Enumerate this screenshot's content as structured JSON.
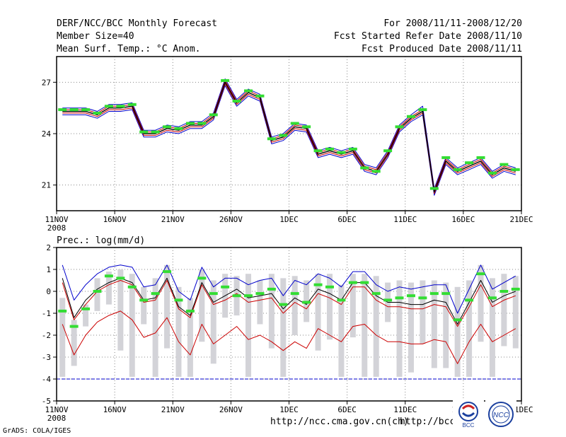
{
  "header": {
    "title": "DERF/NCC/BCC Monthly Forecast",
    "member_size": "Member Size=40",
    "variable": "Mean Surf. Temp.: °C Anom.",
    "forecast_period": "For 2008/11/11-2008/12/20",
    "started_refer": "Fcst Started Refer Date 2008/11/10",
    "produced": "Fcst Produced Date 2008/11/11"
  },
  "footer": {
    "url_ncc": "http://ncc.cma.gov.cn(ch)",
    "url_bcc": "http://bcc.c",
    "credit": "GrADS: COLA/IGES",
    "logo_bcc_label": "BCC",
    "logo_ncc_label": "NCC"
  },
  "colors": {
    "mean": "#000000",
    "inner_envelope": "#cc0000",
    "outer_envelope": "#0000cc",
    "marker": "#33dd33",
    "spread_bar": "#d3d3d8",
    "grid": "#888888"
  },
  "chart_data": [
    {
      "type": "line",
      "title": "Mean Surf. Temp.: °C Anom.",
      "x_tick_labels": [
        "11NOV",
        "16NOV",
        "21NOV",
        "26NOV",
        "1DEC",
        "6DEC",
        "11DEC",
        "16DEC",
        "21DEC"
      ],
      "x_sub_label": "2008",
      "y_ticks": [
        21,
        24,
        27
      ],
      "ylim": [
        19.5,
        28.5
      ],
      "x": [
        1,
        2,
        3,
        4,
        5,
        6,
        7,
        8,
        9,
        10,
        11,
        12,
        13,
        14,
        15,
        16,
        17,
        18,
        19,
        20,
        21,
        22,
        23,
        24,
        25,
        26,
        27,
        28,
        29,
        30,
        31,
        32,
        33,
        34,
        35,
        36,
        37,
        38,
        39,
        40
      ],
      "series": [
        {
          "name": "mean",
          "values": [
            25.3,
            25.3,
            25.3,
            25.1,
            25.5,
            25.5,
            25.6,
            24.0,
            24.0,
            24.3,
            24.2,
            24.5,
            24.5,
            25.0,
            27.0,
            25.8,
            26.4,
            26.1,
            23.6,
            23.8,
            24.4,
            24.3,
            22.8,
            23.0,
            22.8,
            23.0,
            22.0,
            21.8,
            22.8,
            24.3,
            24.9,
            25.3,
            20.6,
            22.4,
            21.8,
            22.1,
            22.4,
            21.6,
            22.0,
            21.8
          ]
        },
        {
          "name": "red-envelope-upper",
          "values": [
            25.4,
            25.4,
            25.4,
            25.2,
            25.6,
            25.6,
            25.7,
            24.1,
            24.1,
            24.4,
            24.3,
            24.6,
            24.6,
            25.1,
            27.1,
            25.9,
            26.5,
            26.2,
            23.7,
            23.9,
            24.5,
            24.4,
            22.9,
            23.1,
            22.9,
            23.1,
            22.1,
            21.9,
            22.9,
            24.4,
            25.0,
            25.4,
            20.7,
            22.5,
            21.9,
            22.2,
            22.5,
            21.7,
            22.1,
            21.9
          ]
        },
        {
          "name": "red-envelope-lower",
          "values": [
            25.2,
            25.2,
            25.2,
            25.0,
            25.4,
            25.4,
            25.5,
            23.9,
            23.9,
            24.2,
            24.1,
            24.4,
            24.4,
            24.9,
            26.9,
            25.7,
            26.3,
            26.0,
            23.5,
            23.7,
            24.3,
            24.2,
            22.7,
            22.9,
            22.7,
            22.9,
            21.9,
            21.7,
            22.7,
            24.2,
            24.8,
            25.2,
            20.5,
            22.3,
            21.7,
            22.0,
            22.3,
            21.5,
            21.9,
            21.7
          ]
        },
        {
          "name": "blue-envelope-upper",
          "values": [
            25.5,
            25.5,
            25.5,
            25.3,
            25.7,
            25.7,
            25.8,
            24.2,
            24.2,
            24.5,
            24.4,
            24.7,
            24.7,
            25.2,
            27.2,
            26.0,
            26.6,
            26.3,
            23.8,
            24.0,
            24.6,
            24.5,
            23.0,
            23.2,
            23.0,
            23.2,
            22.2,
            22.0,
            23.0,
            24.5,
            25.1,
            25.6,
            20.8,
            22.6,
            22.0,
            22.3,
            22.6,
            21.8,
            22.2,
            22.0
          ]
        },
        {
          "name": "blue-envelope-lower",
          "values": [
            25.1,
            25.1,
            25.1,
            24.9,
            25.3,
            25.3,
            25.4,
            23.8,
            23.8,
            24.1,
            24.0,
            24.3,
            24.3,
            24.8,
            26.8,
            25.6,
            26.2,
            25.9,
            23.4,
            23.6,
            24.2,
            24.1,
            22.6,
            22.8,
            22.6,
            22.8,
            21.8,
            21.6,
            22.6,
            24.1,
            24.7,
            25.1,
            20.4,
            22.2,
            21.6,
            21.9,
            22.2,
            21.4,
            21.8,
            21.6
          ]
        },
        {
          "name": "green-markers",
          "values": [
            25.4,
            25.4,
            25.4,
            25.2,
            25.6,
            25.6,
            25.7,
            24.1,
            24.1,
            24.4,
            24.3,
            24.6,
            24.6,
            25.1,
            27.1,
            25.9,
            26.5,
            26.2,
            23.7,
            23.9,
            24.6,
            24.4,
            23.0,
            23.1,
            22.9,
            23.1,
            22.0,
            21.8,
            23.0,
            24.4,
            25.0,
            25.4,
            20.8,
            22.6,
            21.9,
            22.3,
            22.6,
            21.7,
            22.2,
            21.9
          ]
        }
      ]
    },
    {
      "type": "line",
      "title": "Prec.: log(mm/d)",
      "x_tick_labels": [
        "11NOV",
        "16NOV",
        "21NOV",
        "26NOV",
        "1DEC",
        "6DEC",
        "11DEC",
        "16DEC",
        "21DEC"
      ],
      "x_sub_label": "2008",
      "y_ticks": [
        -5,
        -4,
        -3,
        -2,
        -1,
        0,
        1,
        2
      ],
      "ylim": [
        -5,
        2
      ],
      "x": [
        1,
        2,
        3,
        4,
        5,
        6,
        7,
        8,
        9,
        10,
        11,
        12,
        13,
        14,
        15,
        16,
        17,
        18,
        19,
        20,
        21,
        22,
        23,
        24,
        25,
        26,
        27,
        28,
        29,
        30,
        31,
        32,
        33,
        34,
        35,
        36,
        37,
        38,
        39,
        40
      ],
      "baseline": -4,
      "series": [
        {
          "name": "mean",
          "values": [
            0.6,
            -1.2,
            -0.4,
            0.1,
            0.4,
            0.6,
            0.4,
            -0.4,
            -0.3,
            0.6,
            -0.7,
            -1.1,
            0.4,
            -0.5,
            -0.2,
            0.1,
            -0.3,
            -0.2,
            -0.1,
            -0.8,
            -0.3,
            -0.6,
            0.1,
            -0.1,
            -0.4,
            0.4,
            0.4,
            -0.2,
            -0.5,
            -0.5,
            -0.6,
            -0.6,
            -0.4,
            -0.5,
            -1.5,
            -0.5,
            0.5,
            -0.5,
            -0.2,
            0.0
          ]
        },
        {
          "name": "inner-upper",
          "values": [
            0.4,
            -1.3,
            -0.6,
            0.0,
            0.3,
            0.5,
            0.3,
            -0.5,
            -0.4,
            0.5,
            -0.8,
            -1.2,
            0.3,
            -0.6,
            -0.4,
            -0.1,
            -0.5,
            -0.4,
            -0.3,
            -1.0,
            -0.5,
            -0.8,
            -0.1,
            -0.3,
            -0.6,
            0.2,
            0.2,
            -0.4,
            -0.7,
            -0.7,
            -0.8,
            -0.8,
            -0.6,
            -0.7,
            -1.6,
            -0.7,
            0.3,
            -0.7,
            -0.4,
            -0.2
          ]
        },
        {
          "name": "inner-lower",
          "values": [
            -1.5,
            -2.9,
            -2.0,
            -1.4,
            -1.1,
            -0.9,
            -1.3,
            -2.1,
            -1.9,
            -1.2,
            -2.3,
            -2.9,
            -1.5,
            -2.4,
            -2.0,
            -1.6,
            -2.2,
            -2.0,
            -2.3,
            -2.7,
            -2.3,
            -2.6,
            -1.7,
            -2.0,
            -2.3,
            -1.6,
            -1.5,
            -2.0,
            -2.3,
            -2.3,
            -2.4,
            -2.4,
            -2.2,
            -2.3,
            -3.3,
            -2.3,
            -1.5,
            -2.3,
            -2.0,
            -1.7
          ]
        },
        {
          "name": "outer-upper",
          "values": [
            1.2,
            -0.4,
            0.3,
            0.8,
            1.1,
            1.2,
            1.1,
            0.2,
            0.3,
            1.2,
            0.0,
            -0.4,
            1.1,
            0.2,
            0.6,
            0.6,
            0.3,
            0.5,
            0.6,
            -0.2,
            0.5,
            0.3,
            0.8,
            0.6,
            0.2,
            0.9,
            0.9,
            0.3,
            0.0,
            0.2,
            0.1,
            0.2,
            0.3,
            0.3,
            -1.0,
            0.1,
            1.2,
            0.1,
            0.4,
            0.7
          ]
        },
        {
          "name": "green-markers",
          "values": [
            -0.9,
            -1.6,
            -0.8,
            0.0,
            0.7,
            0.6,
            0.2,
            -0.4,
            -0.1,
            0.9,
            -0.4,
            -0.9,
            0.6,
            -0.1,
            0.2,
            -0.2,
            -0.2,
            -0.1,
            0.1,
            -0.6,
            -0.1,
            -0.5,
            0.3,
            0.2,
            -0.4,
            0.4,
            0.4,
            -0.1,
            -0.4,
            -0.3,
            -0.2,
            -0.3,
            -0.1,
            -0.1,
            -1.3,
            -0.4,
            0.8,
            -0.3,
            0.0,
            0.1
          ]
        },
        {
          "name": "spread-bar-top",
          "values": [
            -0.3,
            -1.3,
            -0.6,
            0.6,
            0.9,
            1.0,
            0.8,
            0.2,
            0.6,
            1.2,
            0.2,
            -0.3,
            1.0,
            0.5,
            0.8,
            0.7,
            0.8,
            0.5,
            0.8,
            0.6,
            0.7,
            0.5,
            0.8,
            0.8,
            0.3,
            0.8,
            0.8,
            0.7,
            0.4,
            0.5,
            0.4,
            0.5,
            0.5,
            0.4,
            0.2,
            0.5,
            1.2,
            0.6,
            0.8,
            0.7
          ]
        },
        {
          "name": "spread-bar-bottom",
          "values": [
            -3.9,
            -3.4,
            -1.6,
            -0.9,
            -0.6,
            -2.7,
            -3.9,
            -1.5,
            -3.9,
            -2.6,
            -3.9,
            -3.9,
            -2.3,
            -3.3,
            -1.2,
            -1.1,
            -3.9,
            -1.5,
            -2.6,
            -3.9,
            -2.0,
            -1.4,
            -2.7,
            -2.2,
            -3.9,
            -2.1,
            -3.9,
            -3.9,
            -1.4,
            -3.9,
            -3.7,
            -2.4,
            -3.5,
            -3.5,
            -3.9,
            -3.9,
            -2.3,
            -3.9,
            -2.5,
            -2.6
          ]
        }
      ]
    }
  ]
}
